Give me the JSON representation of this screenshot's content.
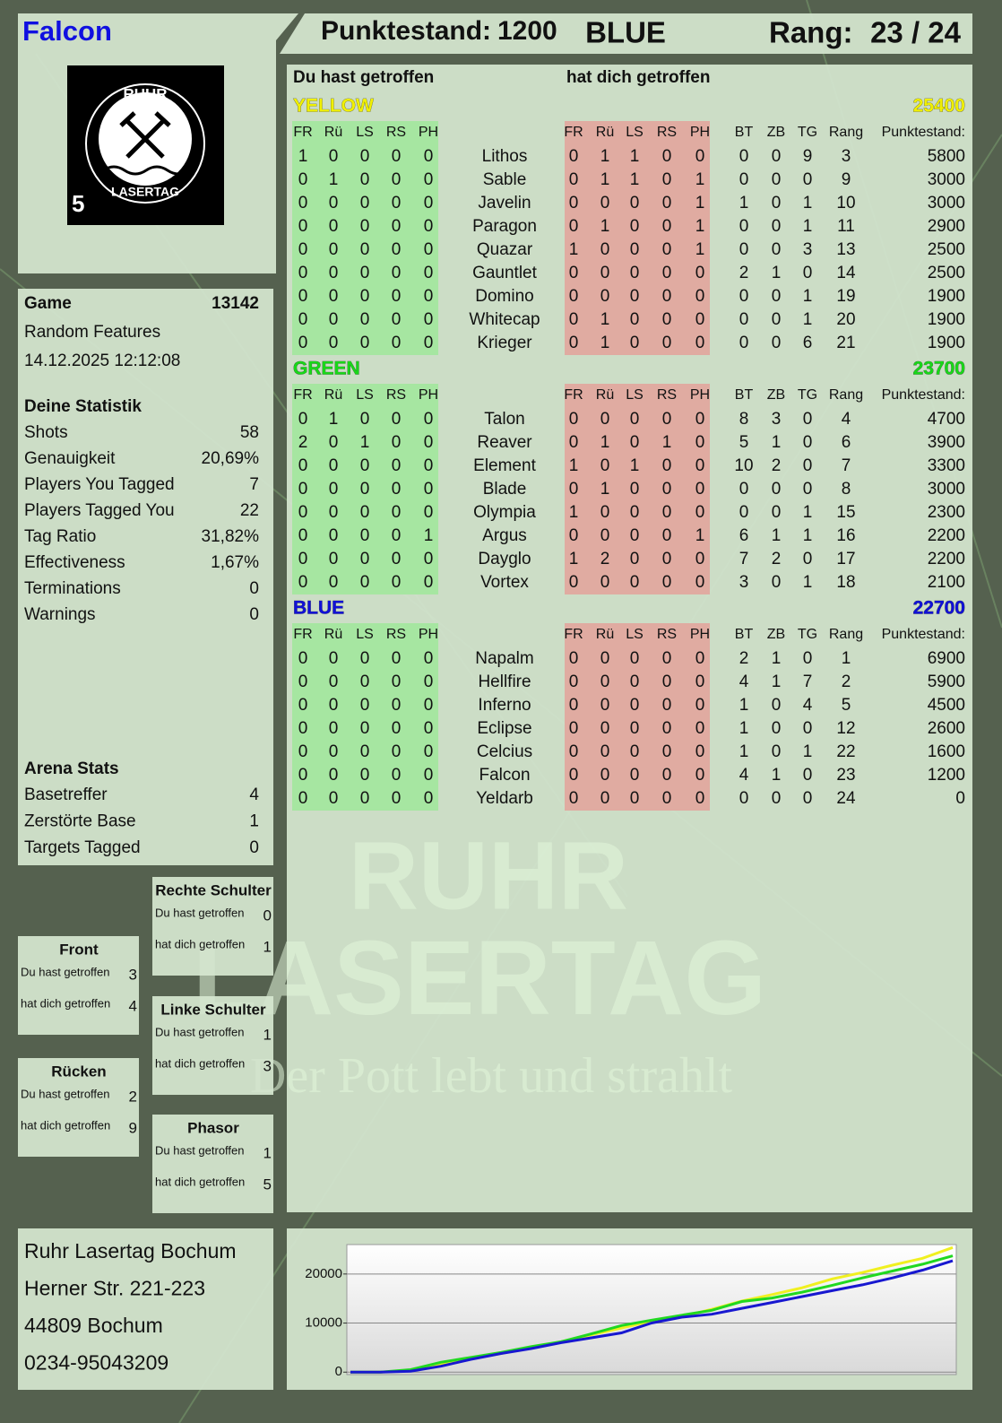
{
  "header": {
    "player": "Falcon",
    "score_label": "Punktestand:",
    "score": 1200,
    "team": "BLUE",
    "rank_label": "Rang:",
    "rank": "23 / 24"
  },
  "logo": {
    "top": "RUHR",
    "bottom": "LASERTAG",
    "number": 5
  },
  "game": {
    "label": "Game",
    "id": 13142,
    "mode": "Random Features",
    "datetime": "14.12.2025 12:12:08"
  },
  "stats": {
    "title": "Deine Statistik",
    "rows": [
      [
        "Shots",
        58
      ],
      [
        "Genauigkeit",
        "20,69%"
      ],
      [
        "Players You Tagged",
        7
      ],
      [
        "Players Tagged You",
        22
      ],
      [
        "Tag Ratio",
        "31,82%"
      ],
      [
        "Effectiveness",
        "1,67%"
      ],
      [
        "Terminations",
        0
      ],
      [
        "Warnings",
        0
      ]
    ]
  },
  "arena": {
    "title": "Arena Stats",
    "rows": [
      [
        "Basetreffer",
        4
      ],
      [
        "Zerstörte Base",
        1
      ],
      [
        "Targets Tagged",
        0
      ]
    ]
  },
  "zones": {
    "hit_label": "Du hast getroffen",
    "hit_by_label": "hat dich getroffen",
    "items": [
      {
        "name": "Rechte Schulter",
        "hit": 0,
        "hit_by": 1
      },
      {
        "name": "Front",
        "hit": 3,
        "hit_by": 4
      },
      {
        "name": "Linke Schulter",
        "hit": 1,
        "hit_by": 3
      },
      {
        "name": "Rücken",
        "hit": 2,
        "hit_by": 9
      },
      {
        "name": "Phasor",
        "hit": 1,
        "hit_by": 5
      }
    ]
  },
  "table": {
    "hit_label": "Du hast getroffen",
    "hit_by_label": "hat dich getroffen",
    "hit_columns": [
      "FR",
      "Rü",
      "LS",
      "RS",
      "PH"
    ],
    "stat_columns": [
      "BT",
      "ZB",
      "TG",
      "Rang",
      "Punktestand:"
    ],
    "teams": [
      {
        "name": "YELLOW",
        "color": "#f0f000",
        "score": 25400,
        "players": [
          [
            "Lithos",
            [
              1,
              0,
              0,
              0,
              0
            ],
            [
              0,
              1,
              1,
              0,
              0
            ],
            0,
            0,
            9,
            3,
            5800
          ],
          [
            "Sable",
            [
              0,
              1,
              0,
              0,
              0
            ],
            [
              0,
              1,
              1,
              0,
              1
            ],
            0,
            0,
            0,
            9,
            3000
          ],
          [
            "Javelin",
            [
              0,
              0,
              0,
              0,
              0
            ],
            [
              0,
              0,
              0,
              0,
              1
            ],
            1,
            0,
            1,
            10,
            3000
          ],
          [
            "Paragon",
            [
              0,
              0,
              0,
              0,
              0
            ],
            [
              0,
              1,
              0,
              0,
              1
            ],
            0,
            0,
            1,
            11,
            2900
          ],
          [
            "Quazar",
            [
              0,
              0,
              0,
              0,
              0
            ],
            [
              1,
              0,
              0,
              0,
              1
            ],
            0,
            0,
            3,
            13,
            2500
          ],
          [
            "Gauntlet",
            [
              0,
              0,
              0,
              0,
              0
            ],
            [
              0,
              0,
              0,
              0,
              0
            ],
            2,
            1,
            0,
            14,
            2500
          ],
          [
            "Domino",
            [
              0,
              0,
              0,
              0,
              0
            ],
            [
              0,
              0,
              0,
              0,
              0
            ],
            0,
            0,
            1,
            19,
            1900
          ],
          [
            "Whitecap",
            [
              0,
              0,
              0,
              0,
              0
            ],
            [
              0,
              1,
              0,
              0,
              0
            ],
            0,
            0,
            1,
            20,
            1900
          ],
          [
            "Krieger",
            [
              0,
              0,
              0,
              0,
              0
            ],
            [
              0,
              1,
              0,
              0,
              0
            ],
            0,
            0,
            6,
            21,
            1900
          ]
        ]
      },
      {
        "name": "GREEN",
        "color": "#18d818",
        "score": 23700,
        "players": [
          [
            "Talon",
            [
              0,
              1,
              0,
              0,
              0
            ],
            [
              0,
              0,
              0,
              0,
              0
            ],
            8,
            3,
            0,
            4,
            4700
          ],
          [
            "Reaver",
            [
              2,
              0,
              1,
              0,
              0
            ],
            [
              0,
              1,
              0,
              1,
              0
            ],
            5,
            1,
            0,
            6,
            3900
          ],
          [
            "Element",
            [
              0,
              0,
              0,
              0,
              0
            ],
            [
              1,
              0,
              1,
              0,
              0
            ],
            10,
            2,
            0,
            7,
            3300
          ],
          [
            "Blade",
            [
              0,
              0,
              0,
              0,
              0
            ],
            [
              0,
              1,
              0,
              0,
              0
            ],
            0,
            0,
            0,
            8,
            3000
          ],
          [
            "Olympia",
            [
              0,
              0,
              0,
              0,
              0
            ],
            [
              1,
              0,
              0,
              0,
              0
            ],
            0,
            0,
            1,
            15,
            2300
          ],
          [
            "Argus",
            [
              0,
              0,
              0,
              0,
              1
            ],
            [
              0,
              0,
              0,
              0,
              1
            ],
            6,
            1,
            1,
            16,
            2200
          ],
          [
            "Dayglo",
            [
              0,
              0,
              0,
              0,
              0
            ],
            [
              1,
              2,
              0,
              0,
              0
            ],
            7,
            2,
            0,
            17,
            2200
          ],
          [
            "Vortex",
            [
              0,
              0,
              0,
              0,
              0
            ],
            [
              0,
              0,
              0,
              0,
              0
            ],
            3,
            0,
            1,
            18,
            2100
          ]
        ]
      },
      {
        "name": "BLUE",
        "color": "#1010d8",
        "score": 22700,
        "players": [
          [
            "Napalm",
            [
              0,
              0,
              0,
              0,
              0
            ],
            [
              0,
              0,
              0,
              0,
              0
            ],
            2,
            1,
            0,
            1,
            6900
          ],
          [
            "Hellfire",
            [
              0,
              0,
              0,
              0,
              0
            ],
            [
              0,
              0,
              0,
              0,
              0
            ],
            4,
            1,
            7,
            2,
            5900
          ],
          [
            "Inferno",
            [
              0,
              0,
              0,
              0,
              0
            ],
            [
              0,
              0,
              0,
              0,
              0
            ],
            1,
            0,
            4,
            5,
            4500
          ],
          [
            "Eclipse",
            [
              0,
              0,
              0,
              0,
              0
            ],
            [
              0,
              0,
              0,
              0,
              0
            ],
            1,
            0,
            0,
            12,
            2600
          ],
          [
            "Celcius",
            [
              0,
              0,
              0,
              0,
              0
            ],
            [
              0,
              0,
              0,
              0,
              0
            ],
            1,
            0,
            1,
            22,
            1600
          ],
          [
            "Falcon",
            [
              0,
              0,
              0,
              0,
              0
            ],
            [
              0,
              0,
              0,
              0,
              0
            ],
            4,
            1,
            0,
            23,
            1200
          ],
          [
            "Yeldarb",
            [
              0,
              0,
              0,
              0,
              0
            ],
            [
              0,
              0,
              0,
              0,
              0
            ],
            0,
            0,
            0,
            24,
            0
          ]
        ]
      }
    ]
  },
  "address": [
    "Ruhr Lasertag Bochum",
    "Herner Str. 221-223",
    "44809 Bochum",
    "0234-95043209"
  ],
  "watermark": {
    "line1": "RUHR",
    "line2": "LASERTAG",
    "slogan": "Der Pott lebt und strahlt"
  },
  "chart_data": {
    "type": "line",
    "ylim": [
      -500,
      26000
    ],
    "yticks": [
      0,
      10000,
      20000
    ],
    "grid": true,
    "series": [
      {
        "color": "#f0f020",
        "values": [
          0,
          0,
          300,
          1500,
          2700,
          3800,
          5000,
          6200,
          7600,
          9000,
          10400,
          11300,
          12800,
          14500,
          15800,
          17200,
          19000,
          20300,
          21800,
          23200,
          25400
        ]
      },
      {
        "color": "#20d820",
        "values": [
          0,
          0,
          500,
          2000,
          3000,
          4000,
          5200,
          6200,
          7800,
          9500,
          10600,
          11600,
          12600,
          14400,
          15100,
          16300,
          17700,
          19200,
          20600,
          22000,
          23700
        ]
      },
      {
        "color": "#1818d0",
        "values": [
          0,
          0,
          200,
          1200,
          2600,
          3800,
          4800,
          6000,
          7000,
          8000,
          10000,
          11200,
          11800,
          13000,
          14200,
          15400,
          16600,
          17800,
          19200,
          20800,
          22700
        ]
      }
    ]
  }
}
